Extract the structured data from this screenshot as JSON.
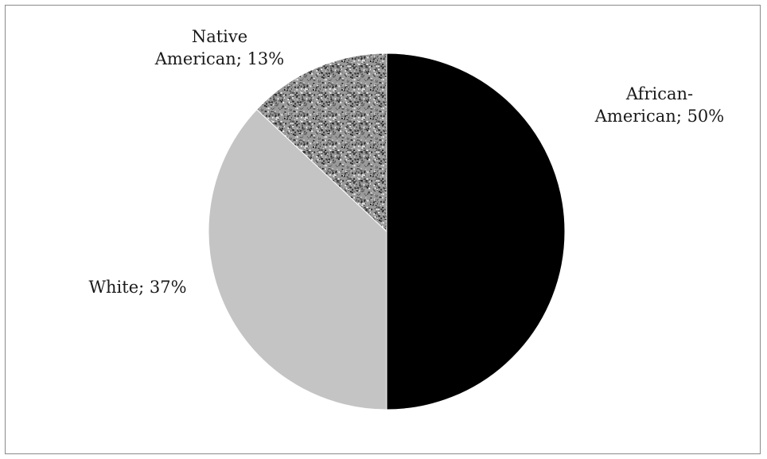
{
  "chart_data": {
    "type": "pie",
    "title": "",
    "slices": [
      {
        "label_lines": [
          "African-",
          "American; 50%"
        ],
        "category": "African-American",
        "value": 50,
        "color": "#000000",
        "pattern": "solid"
      },
      {
        "label_lines": [
          "White; 37%"
        ],
        "category": "White",
        "value": 37,
        "color": "#c4c4c4",
        "pattern": "solid"
      },
      {
        "label_lines": [
          "Native",
          "American; 13%"
        ],
        "category": "Native American",
        "value": 13,
        "color": "#8e8e8e",
        "pattern": "speckle"
      }
    ],
    "start_angle": "12 o'clock",
    "direction": "clockwise",
    "legend": "none",
    "data_labels": "outside"
  }
}
